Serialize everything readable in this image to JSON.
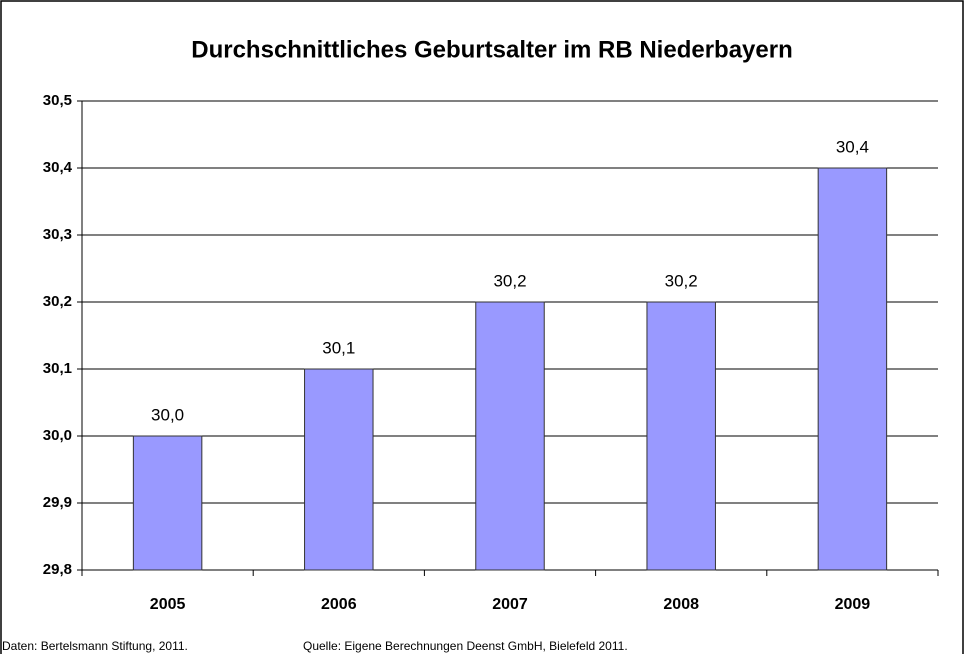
{
  "chart_data": {
    "type": "bar",
    "title": "Durchschnittliches Geburtsalter im RB Niederbayern",
    "categories": [
      "2005",
      "2006",
      "2007",
      "2008",
      "2009"
    ],
    "values": [
      30.0,
      30.1,
      30.2,
      30.2,
      30.4
    ],
    "value_labels": [
      "30,0",
      "30,1",
      "30,2",
      "30,2",
      "30,4"
    ],
    "color": "#9999ff",
    "ylim": [
      29.8,
      30.5
    ],
    "yticks": [
      {
        "value": 29.8,
        "label": "29,8"
      },
      {
        "value": 29.9,
        "label": "29,9"
      },
      {
        "value": 30.0,
        "label": "30,0"
      },
      {
        "value": 30.1,
        "label": "30,1"
      },
      {
        "value": 30.2,
        "label": "30,2"
      },
      {
        "value": 30.3,
        "label": "30,3"
      },
      {
        "value": 30.4,
        "label": "30,4"
      },
      {
        "value": 30.5,
        "label": "30,5"
      }
    ],
    "grid": true,
    "annotations": [
      "Daten: Bertelsmann Stiftung, 2011.",
      "Quelle: Eigene Berechnungen Deenst GmbH, Bielefeld 2011."
    ]
  }
}
